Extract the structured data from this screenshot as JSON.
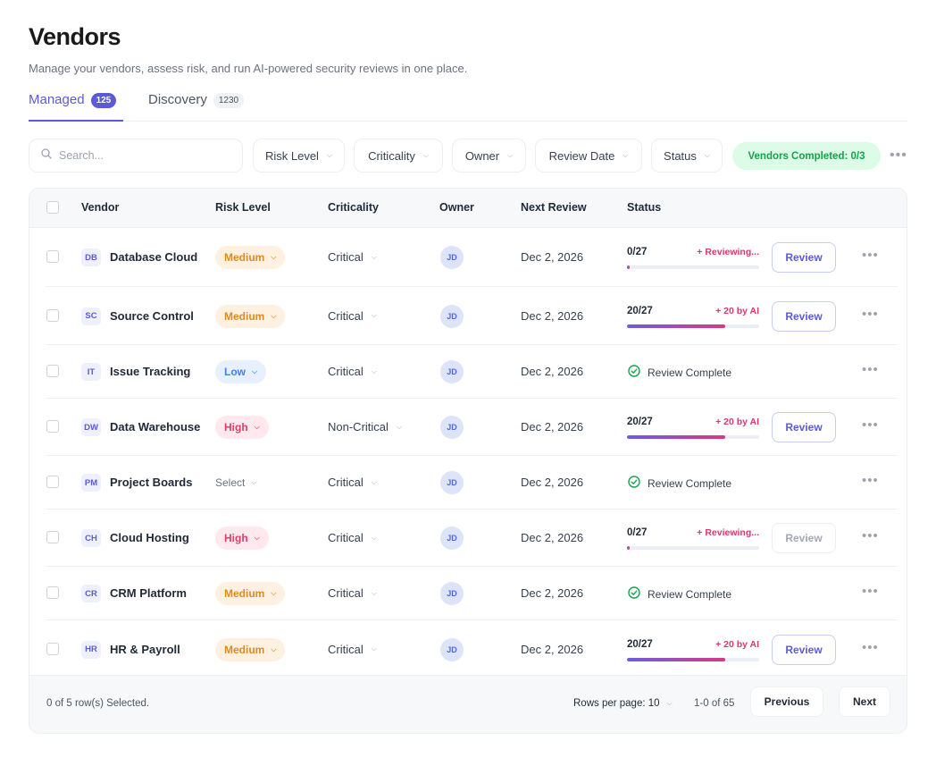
{
  "page": {
    "title": "Vendors",
    "subtitle": "Manage your vendors, assess risk, and run AI-powered security reviews in one place."
  },
  "tabs": [
    {
      "label": "Managed",
      "count": "125"
    },
    {
      "label": "Discovery",
      "count": "1230"
    }
  ],
  "toolbar": {
    "search_placeholder": "Search...",
    "filters": [
      "Risk Level",
      "Criticality",
      "Owner",
      "Review Date",
      "Status"
    ],
    "completed_label": "Vendors Completed: 0/3"
  },
  "table": {
    "columns": [
      "Vendor",
      "Risk Level",
      "Criticality",
      "Owner",
      "Next Review",
      "Status"
    ],
    "rows": [
      {
        "initials": "DB",
        "name": "Database Cloud",
        "risk": "Medium",
        "criticality": "Critical",
        "owner": "JD",
        "next_review": "Dec 2, 2026",
        "status_type": "progress",
        "progress_label": "0/27",
        "progress": 0.02,
        "note": "+ Reviewing...",
        "review_label": "Review",
        "review_disabled": false
      },
      {
        "initials": "SC",
        "name": "Source Control",
        "risk": "Medium",
        "criticality": "Critical",
        "owner": "JD",
        "next_review": "Dec 2, 2026",
        "status_type": "progress",
        "progress_label": "20/27",
        "progress": 0.74,
        "note": "+ 20 by AI",
        "review_label": "Review",
        "review_disabled": false
      },
      {
        "initials": "IT",
        "name": "Issue Tracking",
        "risk": "Low",
        "criticality": "Critical",
        "owner": "JD",
        "next_review": "Dec 2, 2026",
        "status_type": "complete",
        "complete_label": "Review Complete"
      },
      {
        "initials": "DW",
        "name": "Data Warehouse",
        "risk": "High",
        "criticality": "Non-Critical",
        "owner": "JD",
        "next_review": "Dec 2, 2026",
        "status_type": "progress",
        "progress_label": "20/27",
        "progress": 0.74,
        "note": "+ 20 by AI",
        "review_label": "Review",
        "review_disabled": false
      },
      {
        "initials": "PM",
        "name": "Project Boards",
        "risk": "Select",
        "criticality": "Critical",
        "owner": "JD",
        "next_review": "Dec 2, 2026",
        "status_type": "complete",
        "complete_label": "Review Complete"
      },
      {
        "initials": "CH",
        "name": "Cloud Hosting",
        "risk": "High",
        "criticality": "Critical",
        "owner": "JD",
        "next_review": "Dec 2, 2026",
        "status_type": "progress",
        "progress_label": "0/27",
        "progress": 0.02,
        "note": "+ Reviewing...",
        "review_label": "Review",
        "review_disabled": true
      },
      {
        "initials": "CR",
        "name": "CRM Platform",
        "risk": "Medium",
        "criticality": "Critical",
        "owner": "JD",
        "next_review": "Dec 2, 2026",
        "status_type": "complete",
        "complete_label": "Review Complete"
      },
      {
        "initials": "HR",
        "name": "HR & Payroll",
        "risk": "Medium",
        "criticality": "Critical",
        "owner": "JD",
        "next_review": "Dec 2, 2026",
        "status_type": "progress",
        "progress_label": "20/27",
        "progress": 0.74,
        "note": "+ 20 by AI",
        "review_label": "Review",
        "review_disabled": false
      }
    ]
  },
  "footer": {
    "selected_text": "0 of 5 row(s) Selected.",
    "rows_per_page": "Rows per page: 10",
    "range": "1-0 of 65",
    "previous_label": "Previous",
    "next_label": "Next"
  },
  "icons": {
    "search": "search-icon",
    "chevron": "chevron-down-icon",
    "check": "check-circle-icon",
    "more": "more-horizontal-icon"
  },
  "colors": {
    "accent": "#5b5bd6",
    "success": "#16a34a",
    "medium": "#e08a1e",
    "low": "#3b82f6",
    "high": "#e23d6a"
  }
}
